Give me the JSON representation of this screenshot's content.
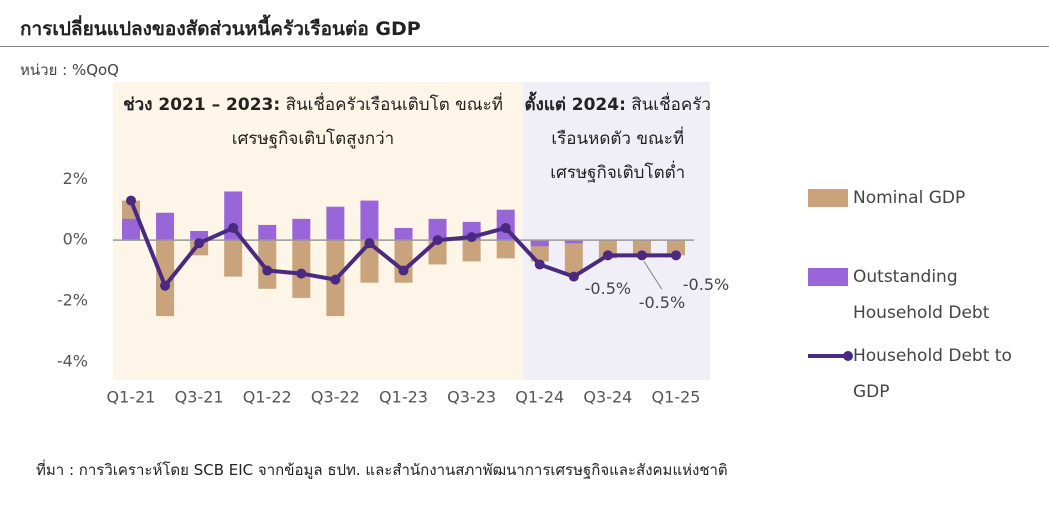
{
  "title": "การเปลี่ยนแปลงของสัดส่วนหนี้ครัวเรือนต่อ  GDP",
  "unit": "หน่วย : %QoQ",
  "source": "ที่มา : การวิเคราะห์โดย SCB EIC จากข้อมูล ธปท. และสำนักงานสภาพัฒนาการเศรษฐกิจและสังคมแห่งชาติ",
  "chart_data": {
    "type": "bar",
    "categories": [
      "Q1-21",
      null,
      "Q3-21",
      null,
      "Q1-22",
      null,
      "Q3-22",
      null,
      "Q1-23",
      null,
      "Q3-23",
      null,
      "Q1-24",
      null,
      "Q3-24",
      null,
      "Q1-25"
    ],
    "series": [
      {
        "name": "Nominal GDP",
        "color": "#c9a37c",
        "values": [
          1.3,
          -2.5,
          -0.5,
          -1.2,
          -1.6,
          -1.9,
          -2.5,
          -1.4,
          -1.4,
          -0.8,
          -0.7,
          -0.6,
          -0.7,
          -1.1,
          -0.6,
          -0.5,
          -0.5
        ]
      },
      {
        "name": "Outstanding Household Debt",
        "color": "#9966d9",
        "values": [
          0.7,
          0.9,
          0.3,
          1.6,
          0.5,
          0.7,
          1.1,
          1.3,
          0.4,
          0.7,
          0.6,
          1.0,
          -0.2,
          -0.1,
          0,
          0,
          0
        ]
      },
      {
        "name": "Household Debt to GDP",
        "type": "line",
        "color": "#4a2a80",
        "values": [
          1.3,
          -1.5,
          -0.1,
          0.4,
          -1.0,
          -1.1,
          -1.3,
          -0.1,
          -1.0,
          0.0,
          0.1,
          0.4,
          -0.8,
          -1.2,
          -0.5,
          -0.5,
          -0.5
        ],
        "value_labels": [
          null,
          null,
          null,
          null,
          null,
          null,
          null,
          null,
          null,
          null,
          null,
          null,
          null,
          null,
          "-0.5%",
          "-0.5%",
          "-0.5%"
        ]
      }
    ],
    "ylim": [
      -4.6,
      5.2
    ],
    "yticks": [
      {
        "value": -4,
        "label": "-4%"
      },
      {
        "value": -2,
        "label": "-2%"
      },
      {
        "value": 0,
        "label": "0%"
      },
      {
        "value": 2,
        "label": "2%"
      }
    ],
    "grid": false,
    "annotations": [
      {
        "heading": "ช่วง 2021 – 2023:",
        "text": "สินเชื่อครัวเรือนเติบโต ขณะที่เศรษฐกิจเติบโตสูงกว่า"
      },
      {
        "heading": "ตั้งแต่ 2024:",
        "text": "สินเชื่อครัวเรือนหดตัว ขณะที่เศรษฐกิจเติบโตต่ำ"
      }
    ]
  }
}
